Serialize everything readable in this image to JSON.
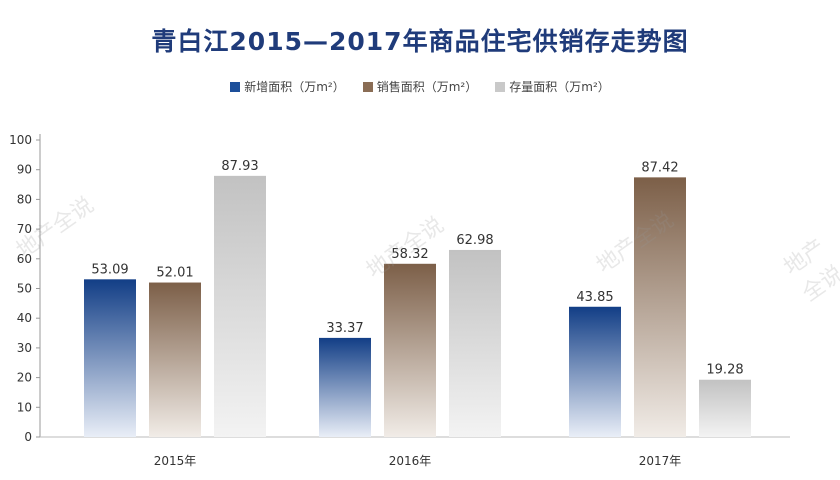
{
  "watermark": "地产全说",
  "chart_data": {
    "type": "bar",
    "title": "青白江2015—2017年商品住宅供销存走势图",
    "categories": [
      "2015年",
      "2016年",
      "2017年"
    ],
    "series": [
      {
        "name": "新增面积（万m²）",
        "color": "#1d4f9a",
        "values": [
          53.09,
          33.37,
          43.85
        ]
      },
      {
        "name": "销售面积（万m²）",
        "color": "#8a6d55",
        "values": [
          52.01,
          58.32,
          87.42
        ]
      },
      {
        "name": "存量面积（万m²）",
        "color": "#c9c9c9",
        "values": [
          87.93,
          62.98,
          19.28
        ]
      }
    ],
    "ylim": [
      0,
      100
    ],
    "yticks": [
      0,
      10,
      20,
      30,
      40,
      50,
      60,
      70,
      80,
      90,
      100
    ],
    "legend_position": "top-center"
  }
}
